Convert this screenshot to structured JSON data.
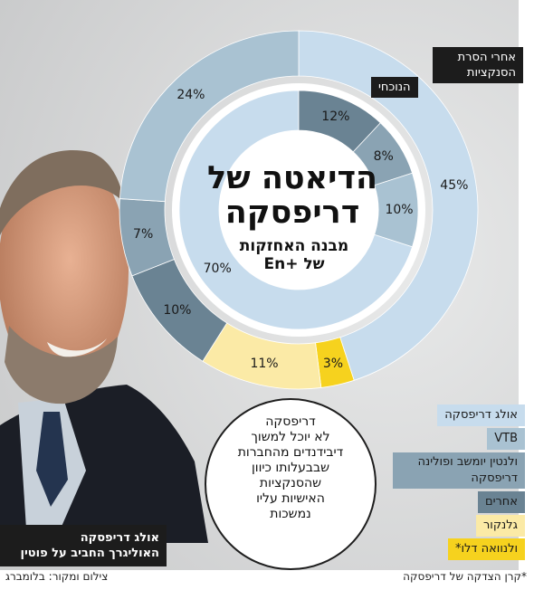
{
  "chart_data": {
    "type": "donut",
    "title": "הדיאטה של דריפסקה",
    "subtitle": "מבנה האחזקות של En+",
    "rings": [
      {
        "name": "אחרי הסרת הסנקציות",
        "segments": [
          {
            "label": "אולג דריפסקה",
            "value": 45
          },
          {
            "label": "ולנוואה דלו*",
            "value": 3
          },
          {
            "label": "גלנקור",
            "value": 11
          },
          {
            "label": "אחרים",
            "value": 10
          },
          {
            "label": "ולנטין יומשב ופולינה דריפסקה",
            "value": 7
          },
          {
            "label": "VTB",
            "value": 24
          }
        ]
      },
      {
        "name": "הנוכחי",
        "segments": [
          {
            "label": "אולג דריפסקה",
            "value": 70
          },
          {
            "label": "אחרים",
            "value": 12
          },
          {
            "label": "ולנטין יומשב ופולינה דריפסקה",
            "value": 8
          },
          {
            "label": "VTB",
            "value": 10
          }
        ]
      }
    ],
    "value_suffix": "%"
  },
  "tags": {
    "outer": "אחרי הסרת הסנקציות",
    "inner": "הנוכחי"
  },
  "title_line1": "הדיאטה של",
  "title_line2": "דריפסקה",
  "subtitle_line1": "מבנה האחזקות",
  "subtitle_line2": "של +En",
  "legend": [
    {
      "label": "אולג דריפסקה",
      "color": "#c7dced"
    },
    {
      "label": "VTB",
      "color": "#a9c2d2"
    },
    {
      "label": "ולנטין יומשב ופולינה דריפסקה",
      "color": "#8aa3b3"
    },
    {
      "label": "אחרים",
      "color": "#6a8393"
    },
    {
      "label": "גלנקור",
      "color": "#fbeaa6"
    },
    {
      "label": "ולנוואה דלו*",
      "color": "#f6d21e"
    }
  ],
  "callout_lines": [
    "דריפסקה",
    "לא יוכל למשוך",
    "דיבידנדים מהחברות",
    "שבבעלותו כיוון",
    "שהסנקציות",
    "האישיות עליו",
    "נמשכות"
  ],
  "photo_caption_line1": "אולג דריפסקה",
  "photo_caption_line2": "האוליגרך החביב על פוטין",
  "footer_left": "צילום ומקור: בלומברג",
  "footer_right": "*קרן הצדקה של דריפסקה",
  "colors": {
    "deripaska": "#c7dced",
    "vtb": "#a9c2d2",
    "yumashev": "#8aa3b3",
    "others": "#6a8393",
    "glencore": "#fbeaa6",
    "valnoua": "#f6d21e"
  }
}
